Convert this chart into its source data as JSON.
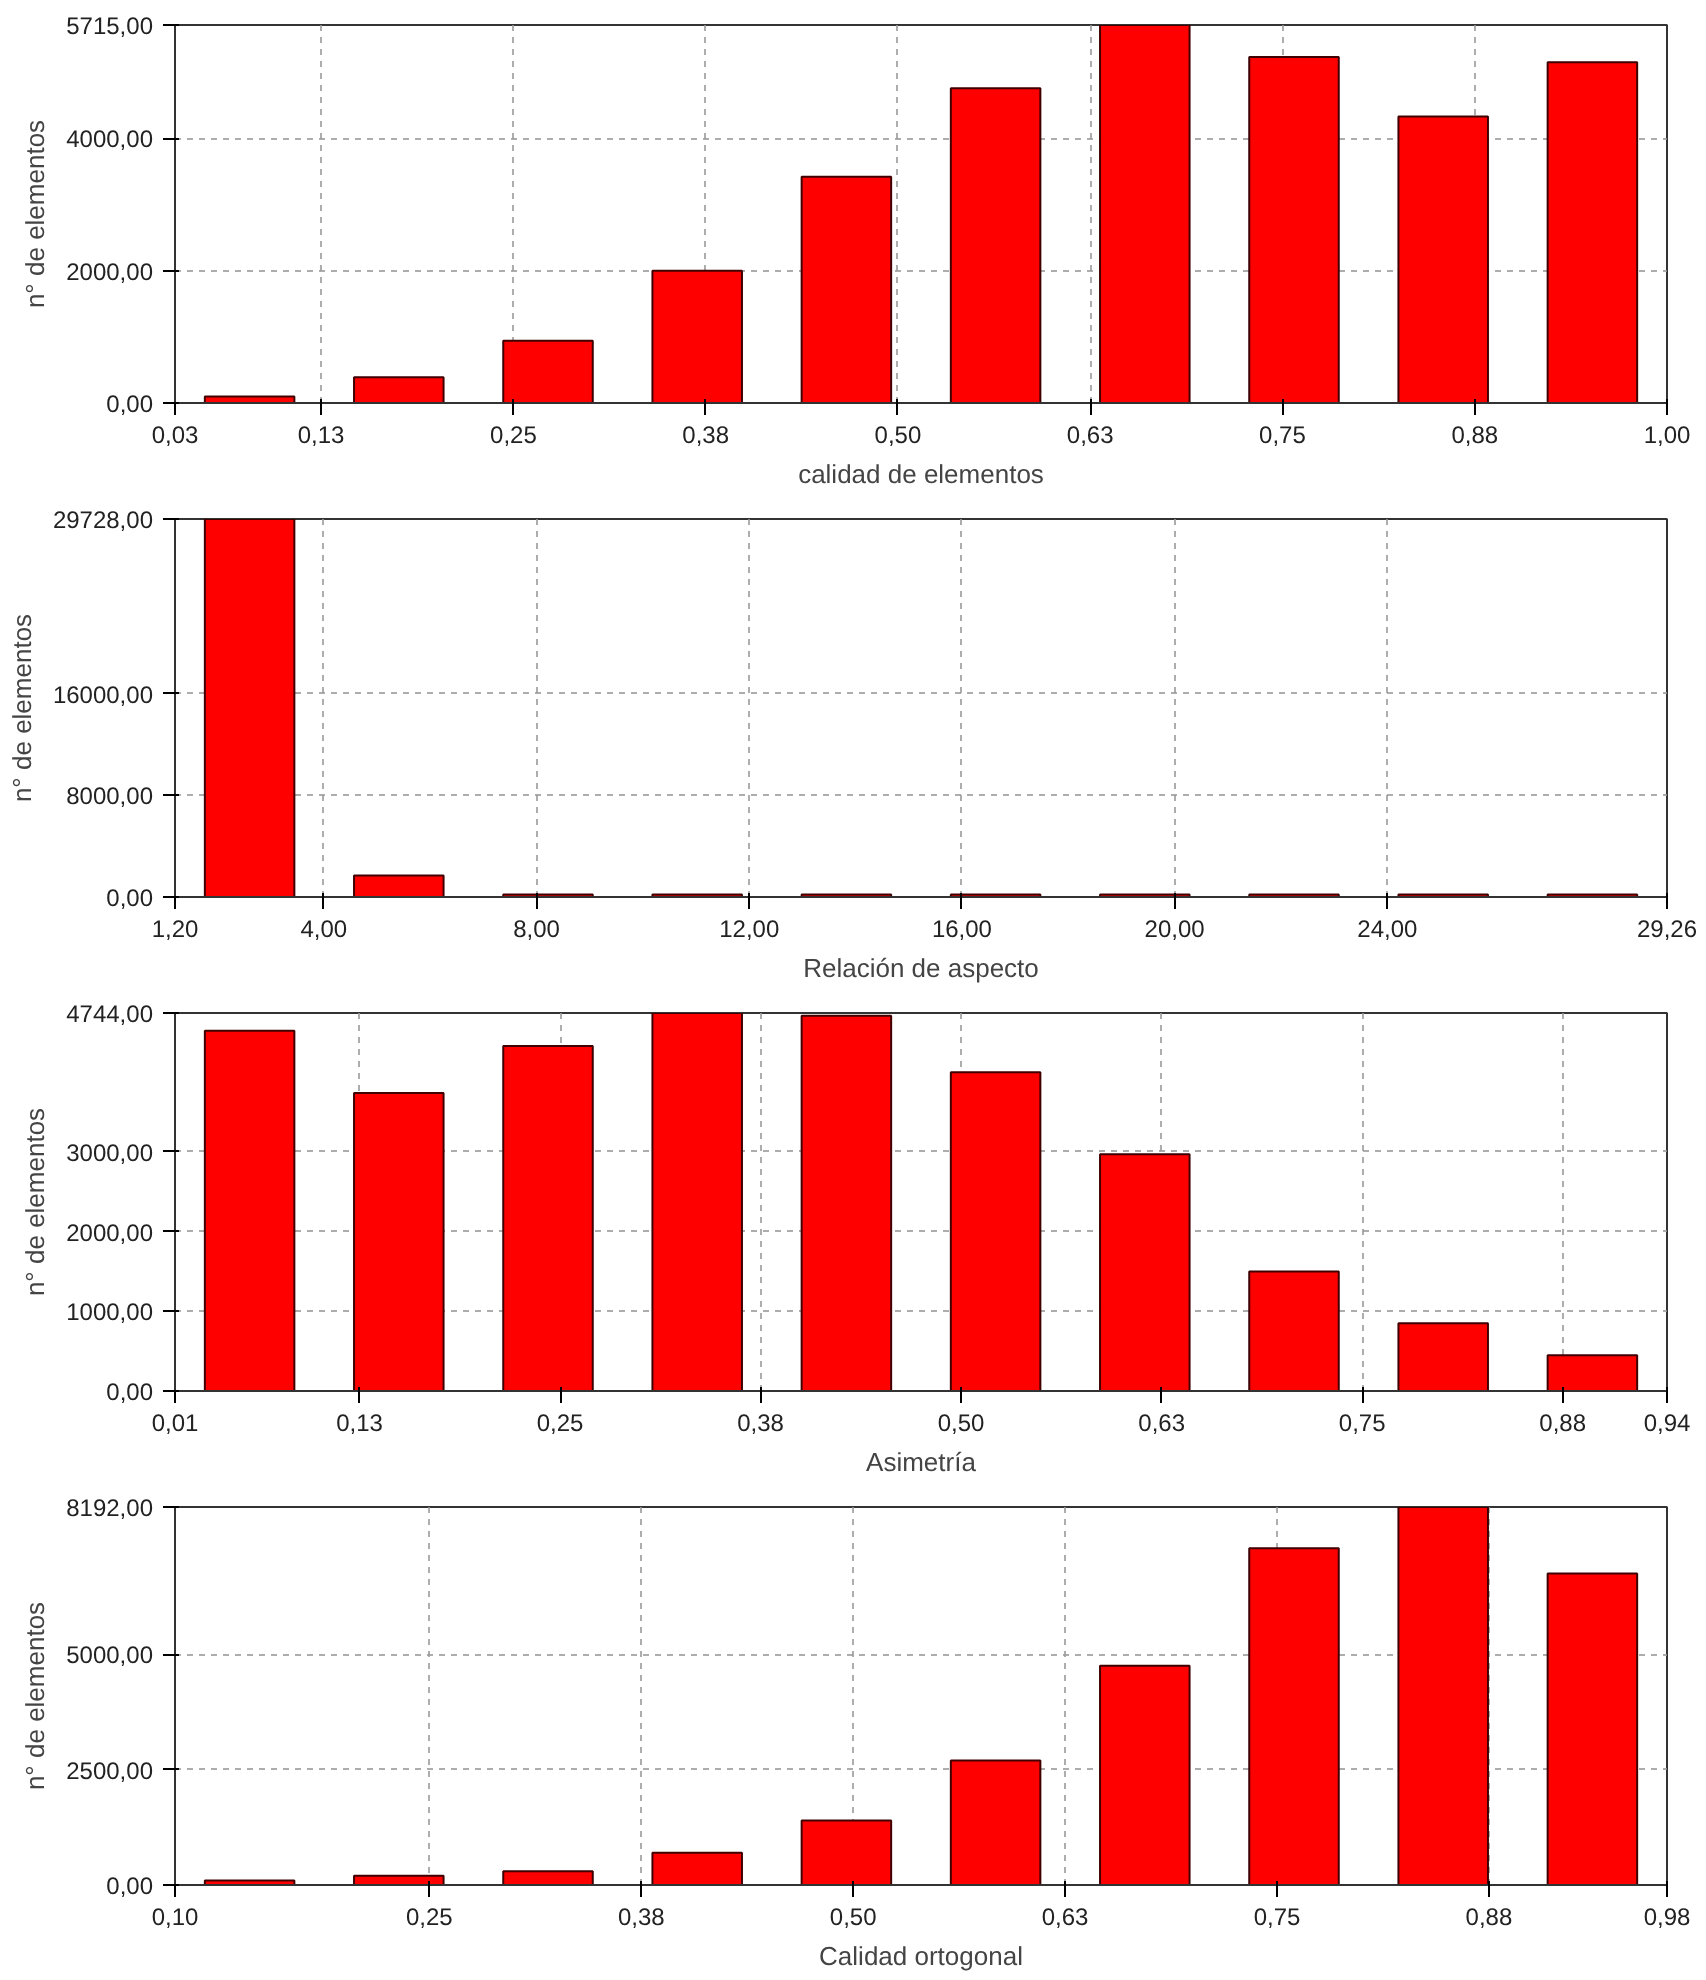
{
  "chart_data": [
    {
      "type": "histogram",
      "xlabel": "calidad de elementos",
      "ylabel": "n° de elementos",
      "color": "#ff0000",
      "grid": true,
      "bins": [
        0.03,
        0.127,
        0.224,
        0.321,
        0.418,
        0.515,
        0.612,
        0.709,
        0.806,
        0.903,
        1.0
      ],
      "values": [
        100,
        390,
        940,
        2000,
        3420,
        4760,
        5715,
        5230,
        4330,
        5150
      ],
      "xlim": [
        0.03,
        1.0
      ],
      "ylim": [
        0,
        5715
      ],
      "xticks": [
        {
          "value": 0.03,
          "label": "0,03"
        },
        {
          "value": 0.125,
          "label": "0,13"
        },
        {
          "value": 0.25,
          "label": "0,25"
        },
        {
          "value": 0.375,
          "label": "0,38"
        },
        {
          "value": 0.5,
          "label": "0,50"
        },
        {
          "value": 0.625,
          "label": "0,63"
        },
        {
          "value": 0.75,
          "label": "0,75"
        },
        {
          "value": 0.875,
          "label": "0,88"
        },
        {
          "value": 1.0,
          "label": "1,00"
        }
      ],
      "yticks": [
        {
          "value": 0,
          "label": "0,00"
        },
        {
          "value": 2000,
          "label": "2000,00"
        },
        {
          "value": 4000,
          "label": "4000,00"
        },
        {
          "value": 5715,
          "label": "5715,00"
        }
      ]
    },
    {
      "type": "histogram",
      "xlabel": "Relación de aspecto",
      "ylabel": "n° de elementos",
      "color": "#ff0000",
      "grid": true,
      "bins": [
        1.2,
        4.006,
        6.812,
        9.618,
        12.424,
        15.23,
        18.036,
        20.842,
        23.648,
        26.454,
        29.26
      ],
      "values": [
        29728,
        1700,
        200,
        200,
        200,
        200,
        200,
        200,
        200,
        200
      ],
      "xlim": [
        1.2,
        29.26
      ],
      "ylim": [
        0,
        29728
      ],
      "xticks": [
        {
          "value": 1.2,
          "label": "1,20"
        },
        {
          "value": 4,
          "label": "4,00"
        },
        {
          "value": 8,
          "label": "8,00"
        },
        {
          "value": 12,
          "label": "12,00"
        },
        {
          "value": 16,
          "label": "16,00"
        },
        {
          "value": 20,
          "label": "20,00"
        },
        {
          "value": 24,
          "label": "24,00"
        },
        {
          "value": 29.26,
          "label": "29,26"
        }
      ],
      "yticks": [
        {
          "value": 0,
          "label": "0,00"
        },
        {
          "value": 8000,
          "label": "8000,00"
        },
        {
          "value": 16000,
          "label": "16000,00"
        },
        {
          "value": 29728,
          "label": "29728,00"
        }
      ]
    },
    {
      "type": "histogram",
      "xlabel": "Asimetría",
      "ylabel": "n° de elementos",
      "color": "#ff0000",
      "grid": true,
      "bins": [
        0.01,
        0.103,
        0.196,
        0.289,
        0.382,
        0.475,
        0.568,
        0.661,
        0.754,
        0.847,
        0.94
      ],
      "values": [
        4520,
        3740,
        4330,
        4744,
        4710,
        4000,
        2970,
        1500,
        850,
        450
      ],
      "xlim": [
        0.01,
        0.94
      ],
      "ylim": [
        0,
        4744
      ],
      "xticks": [
        {
          "value": 0.01,
          "label": "0,01"
        },
        {
          "value": 0.125,
          "label": "0,13"
        },
        {
          "value": 0.25,
          "label": "0,25"
        },
        {
          "value": 0.375,
          "label": "0,38"
        },
        {
          "value": 0.5,
          "label": "0,50"
        },
        {
          "value": 0.625,
          "label": "0,63"
        },
        {
          "value": 0.75,
          "label": "0,75"
        },
        {
          "value": 0.875,
          "label": "0,88"
        },
        {
          "value": 0.94,
          "label": "0,94"
        }
      ],
      "yticks": [
        {
          "value": 0,
          "label": "0,00"
        },
        {
          "value": 1000,
          "label": "1000,00"
        },
        {
          "value": 2000,
          "label": "2000,00"
        },
        {
          "value": 3000,
          "label": "3000,00"
        },
        {
          "value": 4744,
          "label": "4744,00"
        }
      ]
    },
    {
      "type": "histogram",
      "xlabel": "Calidad ortogonal",
      "ylabel": "n° de elementos",
      "color": "#ff0000",
      "grid": true,
      "bins": [
        0.1,
        0.188,
        0.276,
        0.364,
        0.452,
        0.54,
        0.628,
        0.716,
        0.804,
        0.892,
        0.98
      ],
      "values": [
        100,
        200,
        300,
        700,
        1400,
        2700,
        4750,
        7300,
        8192,
        6750
      ],
      "xlim": [
        0.1,
        0.98
      ],
      "ylim": [
        0,
        8192
      ],
      "xticks": [
        {
          "value": 0.1,
          "label": "0,10"
        },
        {
          "value": 0.25,
          "label": "0,25"
        },
        {
          "value": 0.375,
          "label": "0,38"
        },
        {
          "value": 0.5,
          "label": "0,50"
        },
        {
          "value": 0.625,
          "label": "0,63"
        },
        {
          "value": 0.75,
          "label": "0,75"
        },
        {
          "value": 0.875,
          "label": "0,88"
        },
        {
          "value": 0.98,
          "label": "0,98"
        }
      ],
      "yticks": [
        {
          "value": 0,
          "label": "0,00"
        },
        {
          "value": 2500,
          "label": "2500,00"
        },
        {
          "value": 5000,
          "label": "5000,00"
        },
        {
          "value": 8192,
          "label": "8192,00"
        }
      ]
    }
  ]
}
